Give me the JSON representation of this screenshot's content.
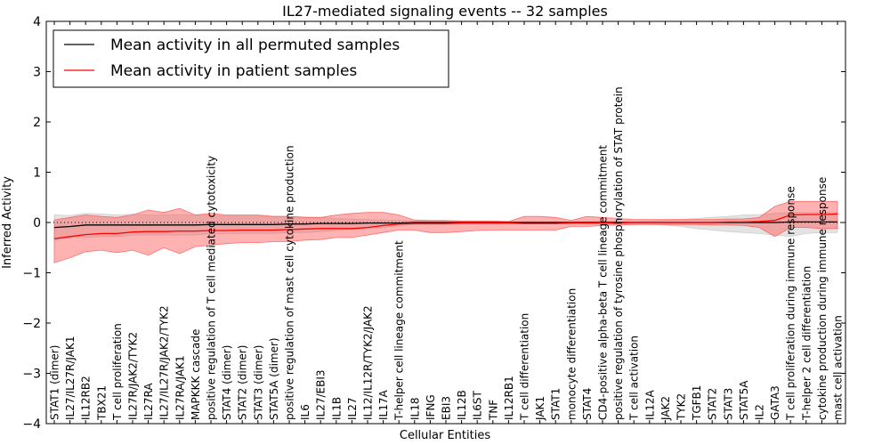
{
  "chart_data": {
    "type": "line",
    "title": "IL27-mediated signaling events -- 32 samples",
    "xlabel": "Cellular Entities",
    "ylabel": "Inferred Activity",
    "ylim": [
      -4,
      4
    ],
    "yticks": [
      "−4",
      "−3",
      "−2",
      "−1",
      "0",
      "1",
      "2",
      "3",
      "4"
    ],
    "ytick_values": [
      -4,
      -3,
      -2,
      -1,
      0,
      1,
      2,
      3,
      4
    ],
    "legend_position": "top-left",
    "categories": [
      "STAT1 (dimer)",
      "IL27/IL27R/JAK1",
      "IL12RB2",
      "TBX21",
      "T cell proliferation",
      "IL27R/JAK2/TYK2",
      "IL27RA",
      "IL27/IL27R/JAK2/TYK2",
      "IL27RA/JAK1",
      "MAPKKK cascade",
      "positive regulation of T cell mediated cytotoxicity",
      "STAT4 (dimer)",
      "STAT2 (dimer)",
      "STAT3 (dimer)",
      "STAT5A (dimer)",
      "positive regulation of mast cell cytokine production",
      "IL6",
      "IL27/EBI3",
      "IL1B",
      "IL27",
      "IL12/IL12R/TYK2/JAK2",
      "IL17A",
      "T-helper cell lineage commitment",
      "IL18",
      "IFNG",
      "EBI3",
      "IL12B",
      "IL6ST",
      "TNF",
      "IL12RB1",
      "T cell differentiation",
      "JAK1",
      "STAT1",
      "monocyte differentiation",
      "STAT4",
      "CD4-positive alpha-beta T cell lineage commitment",
      "positive regulation of tyrosine phosphorylation of STAT protein",
      "T cell activation",
      "IL12A",
      "JAK2",
      "TYK2",
      "TGFB1",
      "STAT2",
      "STAT3",
      "STAT5A",
      "IL2",
      "GATA3",
      "T cell proliferation during immune response",
      "T-helper 2 cell differentiation",
      "cytokine production during immune response",
      "mast cell activation"
    ],
    "series": [
      {
        "name": "Mean activity in all permuted samples",
        "color": "#000000",
        "band_color": "#c8c8c8",
        "values": [
          -0.1,
          -0.08,
          -0.05,
          -0.05,
          -0.05,
          -0.05,
          -0.05,
          -0.05,
          -0.05,
          -0.05,
          -0.04,
          -0.04,
          -0.04,
          -0.04,
          -0.04,
          -0.03,
          -0.03,
          -0.02,
          -0.02,
          -0.02,
          -0.01,
          -0.01,
          -0.01,
          0,
          0,
          0,
          0,
          0,
          0,
          0,
          0,
          0,
          0,
          0,
          0,
          0,
          0,
          0,
          0,
          0,
          0,
          0,
          0,
          0,
          0,
          0,
          0,
          0.01,
          0.01,
          0.01,
          0.01
        ],
        "lower": [
          -0.35,
          -0.3,
          -0.3,
          -0.28,
          -0.28,
          -0.25,
          -0.25,
          -0.25,
          -0.25,
          -0.25,
          -0.22,
          -0.22,
          -0.22,
          -0.22,
          -0.22,
          -0.2,
          -0.2,
          -0.18,
          -0.16,
          -0.14,
          -0.12,
          -0.1,
          -0.06,
          -0.04,
          -0.04,
          -0.04,
          -0.03,
          -0.03,
          -0.03,
          -0.02,
          -0.02,
          -0.02,
          -0.02,
          -0.01,
          -0.02,
          -0.02,
          -0.02,
          -0.02,
          -0.03,
          -0.05,
          -0.08,
          -0.12,
          -0.15,
          -0.18,
          -0.2,
          -0.22,
          -0.25,
          -0.28,
          -0.22,
          -0.2,
          -0.2
        ],
        "upper": [
          0.15,
          0.14,
          0.18,
          0.17,
          0.15,
          0.17,
          0.15,
          0.15,
          0.16,
          0.15,
          0.14,
          0.13,
          0.13,
          0.13,
          0.12,
          0.12,
          0.11,
          0.1,
          0.08,
          0.07,
          0.06,
          0.05,
          0.04,
          0.03,
          0.03,
          0.03,
          0.02,
          0.02,
          0.02,
          0.02,
          0.02,
          0.02,
          0.02,
          0.01,
          0.02,
          0.02,
          0.02,
          0.02,
          0.03,
          0.04,
          0.06,
          0.08,
          0.1,
          0.12,
          0.15,
          0.16,
          0.18,
          0.2,
          0.2,
          0.2,
          0.2
        ]
      },
      {
        "name": "Mean activity in patient samples",
        "color": "#ff0000",
        "band_color": "#ff5555",
        "values": [
          -0.32,
          -0.28,
          -0.24,
          -0.22,
          -0.22,
          -0.19,
          -0.18,
          -0.18,
          -0.17,
          -0.17,
          -0.16,
          -0.16,
          -0.15,
          -0.15,
          -0.15,
          -0.14,
          -0.13,
          -0.12,
          -0.12,
          -0.12,
          -0.1,
          -0.06,
          -0.03,
          -0.02,
          -0.02,
          -0.02,
          -0.01,
          -0.01,
          -0.01,
          -0.01,
          -0.02,
          -0.02,
          -0.02,
          -0.01,
          -0.01,
          -0.01,
          -0.01,
          0,
          0,
          0,
          0,
          0,
          0,
          0.01,
          0.01,
          0.02,
          0.04,
          0.15,
          0.16,
          0.16,
          0.17
        ],
        "lower": [
          -0.8,
          -0.7,
          -0.58,
          -0.55,
          -0.6,
          -0.55,
          -0.65,
          -0.5,
          -0.62,
          -0.48,
          -0.45,
          -0.42,
          -0.4,
          -0.4,
          -0.38,
          -0.38,
          -0.35,
          -0.34,
          -0.3,
          -0.3,
          -0.25,
          -0.2,
          -0.15,
          -0.15,
          -0.2,
          -0.2,
          -0.18,
          -0.16,
          -0.15,
          -0.15,
          -0.15,
          -0.15,
          -0.15,
          -0.08,
          -0.08,
          -0.06,
          -0.05,
          -0.04,
          -0.04,
          -0.04,
          -0.04,
          -0.04,
          -0.05,
          -0.05,
          -0.06,
          -0.1,
          -0.28,
          -0.1,
          -0.1,
          -0.12,
          -0.12
        ],
        "upper": [
          0.05,
          0.1,
          0.15,
          0.12,
          0.1,
          0.15,
          0.25,
          0.2,
          0.28,
          0.15,
          0.18,
          0.15,
          0.15,
          0.15,
          0.12,
          0.12,
          0.1,
          0.1,
          0.15,
          0.18,
          0.2,
          0.2,
          0.15,
          0.05,
          0.04,
          0.04,
          0.03,
          0.03,
          0.03,
          0.02,
          0.12,
          0.12,
          0.1,
          0.04,
          0.12,
          0.1,
          0.08,
          0.06,
          0.06,
          0.06,
          0.06,
          0.06,
          0.06,
          0.07,
          0.07,
          0.1,
          0.32,
          0.42,
          0.42,
          0.42,
          0.42
        ]
      }
    ]
  }
}
